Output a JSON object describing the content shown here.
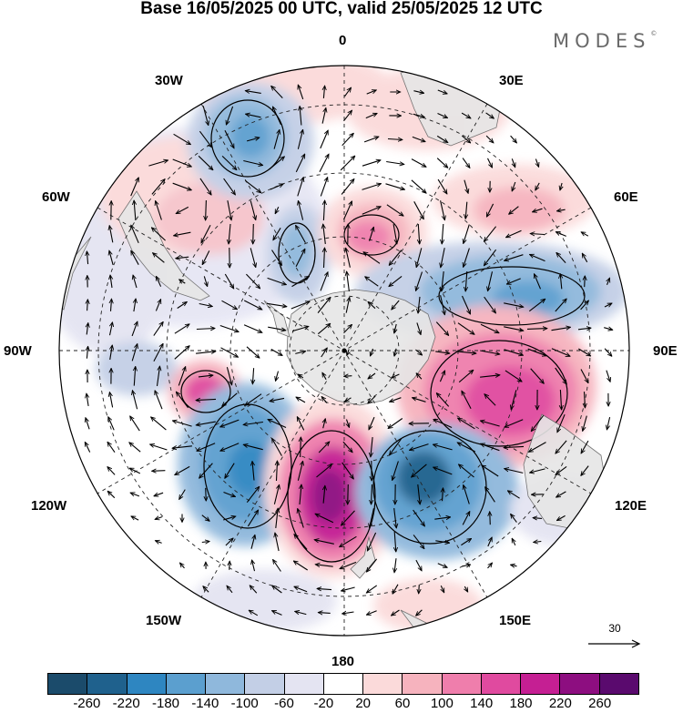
{
  "title": "Base 16/05/2025 00 UTC, valid 25/05/2025 12 UTC",
  "logo": "MODES",
  "logo_mark": "©",
  "map": {
    "projection": "south-polar-stereographic",
    "longitude_labels": {
      "top": "0",
      "top_right": "30E",
      "upper_right": "60E",
      "right": "90E",
      "lower_right": "120E",
      "bottom_right": "150E",
      "bottom": "180",
      "bottom_left": "150W",
      "lower_left": "120W",
      "left": "90W",
      "upper_left": "60W",
      "top_left": "30W"
    },
    "colors": {
      "land": "#e6e6e6",
      "coast": "#666666",
      "grid": "#222222"
    }
  },
  "reference_vector": {
    "label": "30"
  },
  "colorbar": {
    "ticks": [
      "-260",
      "-220",
      "-180",
      "-140",
      "-100",
      "-60",
      "-20",
      "20",
      "60",
      "100",
      "140",
      "180",
      "220",
      "260"
    ],
    "colors": [
      "#1b4b6b",
      "#1f618d",
      "#2e86c1",
      "#5b9fcf",
      "#8fb8dc",
      "#c3cfe6",
      "#e4e4f2",
      "#ffffff",
      "#fbdada",
      "#f6b3be",
      "#ef7eac",
      "#e04a9f",
      "#c51f93",
      "#8d0e80",
      "#5a0a6e"
    ]
  }
}
